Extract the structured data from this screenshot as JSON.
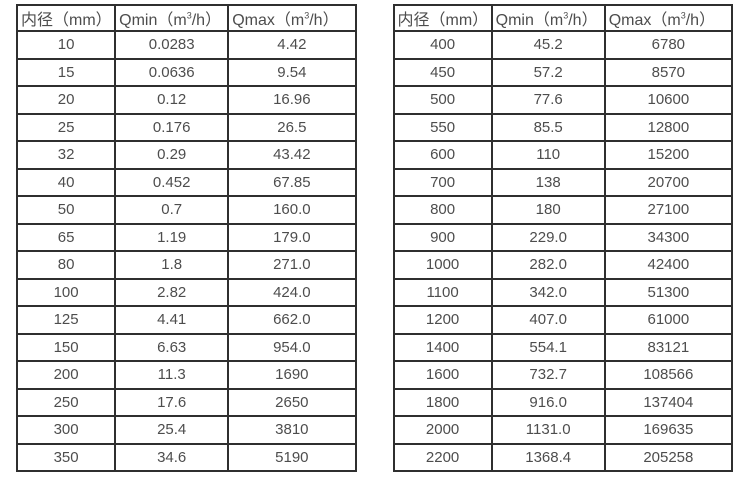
{
  "page": {
    "background": "#ffffff",
    "border_color": "#2f2f2f",
    "text_color": "#4d4d4d"
  },
  "tables": [
    {
      "name": "flow-spec-table-small-diameters",
      "headers": [
        {
          "pre": "内径（mm）",
          "sup": "",
          "post": ""
        },
        {
          "pre": "Qmin（m",
          "sup": "3",
          "post": "/h）"
        },
        {
          "pre": "Qmax（m",
          "sup": "3",
          "post": "/h）"
        }
      ],
      "rows": [
        [
          "10",
          "0.0283",
          "4.42"
        ],
        [
          "15",
          "0.0636",
          "9.54"
        ],
        [
          "20",
          "0.12",
          "16.96"
        ],
        [
          "25",
          "0.176",
          "26.5"
        ],
        [
          "32",
          "0.29",
          "43.42"
        ],
        [
          "40",
          "0.452",
          "67.85"
        ],
        [
          "50",
          "0.7",
          "160.0"
        ],
        [
          "65",
          "1.19",
          "179.0"
        ],
        [
          "80",
          "1.8",
          "271.0"
        ],
        [
          "100",
          "2.82",
          "424.0"
        ],
        [
          "125",
          "4.41",
          "662.0"
        ],
        [
          "150",
          "6.63",
          "954.0"
        ],
        [
          "200",
          "11.3",
          "1690"
        ],
        [
          "250",
          "17.6",
          "2650"
        ],
        [
          "300",
          "25.4",
          "3810"
        ],
        [
          "350",
          "34.6",
          "5190"
        ]
      ]
    },
    {
      "name": "flow-spec-table-large-diameters",
      "headers": [
        {
          "pre": "内径（mm）",
          "sup": "",
          "post": ""
        },
        {
          "pre": "Qmin（m",
          "sup": "3",
          "post": "/h）"
        },
        {
          "pre": "Qmax（m",
          "sup": "3",
          "post": "/h）"
        }
      ],
      "rows": [
        [
          "400",
          "45.2",
          "6780"
        ],
        [
          "450",
          "57.2",
          "8570"
        ],
        [
          "500",
          "77.6",
          "10600"
        ],
        [
          "550",
          "85.5",
          "12800"
        ],
        [
          "600",
          "110",
          "15200"
        ],
        [
          "700",
          "138",
          "20700"
        ],
        [
          "800",
          "180",
          "27100"
        ],
        [
          "900",
          "229.0",
          "34300"
        ],
        [
          "1000",
          "282.0",
          "42400"
        ],
        [
          "1100",
          "342.0",
          "51300"
        ],
        [
          "1200",
          "407.0",
          "61000"
        ],
        [
          "1400",
          "554.1",
          "83121"
        ],
        [
          "1600",
          "732.7",
          "108566"
        ],
        [
          "1800",
          "916.0",
          "137404"
        ],
        [
          "2000",
          "1131.0",
          "169635"
        ],
        [
          "2200",
          "1368.4",
          "205258"
        ]
      ]
    }
  ]
}
